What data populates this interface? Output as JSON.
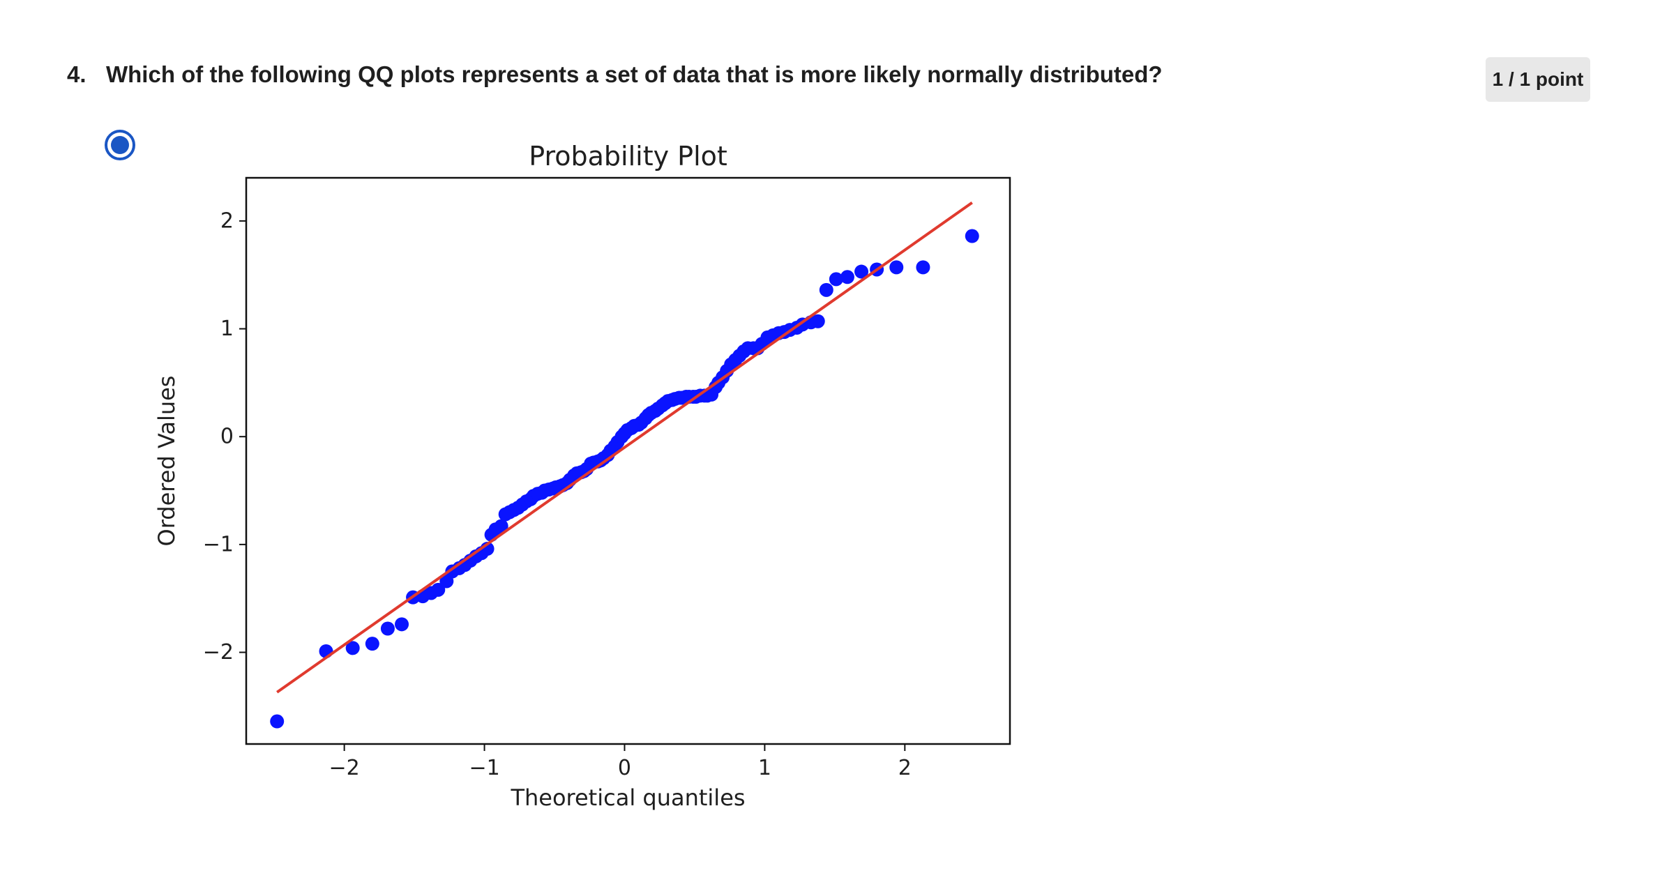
{
  "question": {
    "number": "4.",
    "text": "Which of the following QQ plots represents a set of data that is more likely normally distributed?",
    "score": "1 / 1 point"
  },
  "option": {
    "selected": true
  },
  "chart_data": {
    "type": "scatter",
    "title": "Probability Plot",
    "xlabel": "Theoretical quantiles",
    "ylabel": "Ordered Values",
    "xlim": [
      -2.7,
      2.75
    ],
    "ylim": [
      -2.85,
      2.4
    ],
    "xticks": [
      -2,
      -1,
      0,
      1,
      2
    ],
    "yticks": [
      -2,
      -1,
      0,
      1,
      2
    ],
    "xtick_labels": [
      "−2",
      "−1",
      "0",
      "1",
      "2"
    ],
    "ytick_labels": [
      "−2",
      "−1",
      "0",
      "1",
      "2"
    ],
    "point_color": "#0a14ff",
    "line_color": "#e03a2e",
    "fit_line": {
      "x": [
        -2.48,
        2.48
      ],
      "y": [
        -2.37,
        2.17
      ]
    },
    "points": [
      [
        -2.48,
        -2.64
      ],
      [
        -2.13,
        -1.99
      ],
      [
        -1.94,
        -1.96
      ],
      [
        -1.8,
        -1.92
      ],
      [
        -1.69,
        -1.78
      ],
      [
        -1.59,
        -1.74
      ],
      [
        -1.51,
        -1.49
      ],
      [
        -1.44,
        -1.48
      ],
      [
        -1.38,
        -1.45
      ],
      [
        -1.33,
        -1.42
      ],
      [
        -1.27,
        -1.34
      ],
      [
        -1.23,
        -1.25
      ],
      [
        -1.18,
        -1.22
      ],
      [
        -1.14,
        -1.19
      ],
      [
        -1.1,
        -1.15
      ],
      [
        -1.06,
        -1.11
      ],
      [
        -1.02,
        -1.08
      ],
      [
        -0.98,
        -1.04
      ],
      [
        -0.95,
        -0.91
      ],
      [
        -0.92,
        -0.86
      ],
      [
        -0.88,
        -0.83
      ],
      [
        -0.85,
        -0.72
      ],
      [
        -0.82,
        -0.7
      ],
      [
        -0.79,
        -0.68
      ],
      [
        -0.76,
        -0.66
      ],
      [
        -0.73,
        -0.63
      ],
      [
        -0.7,
        -0.6
      ],
      [
        -0.67,
        -0.58
      ],
      [
        -0.65,
        -0.55
      ],
      [
        -0.62,
        -0.53
      ],
      [
        -0.59,
        -0.52
      ],
      [
        -0.57,
        -0.5
      ],
      [
        -0.54,
        -0.49
      ],
      [
        -0.51,
        -0.48
      ],
      [
        -0.49,
        -0.47
      ],
      [
        -0.46,
        -0.46
      ],
      [
        -0.44,
        -0.45
      ],
      [
        -0.41,
        -0.43
      ],
      [
        -0.39,
        -0.4
      ],
      [
        -0.36,
        -0.36
      ],
      [
        -0.34,
        -0.34
      ],
      [
        -0.31,
        -0.33
      ],
      [
        -0.29,
        -0.32
      ],
      [
        -0.27,
        -0.3
      ],
      [
        -0.24,
        -0.25
      ],
      [
        -0.22,
        -0.24
      ],
      [
        -0.19,
        -0.23
      ],
      [
        -0.17,
        -0.22
      ],
      [
        -0.15,
        -0.2
      ],
      [
        -0.12,
        -0.17
      ],
      [
        -0.1,
        -0.13
      ],
      [
        -0.07,
        -0.09
      ],
      [
        -0.05,
        -0.05
      ],
      [
        -0.02,
        0.0
      ],
      [
        0.0,
        0.03
      ],
      [
        0.02,
        0.06
      ],
      [
        0.05,
        0.08
      ],
      [
        0.07,
        0.1
      ],
      [
        0.1,
        0.11
      ],
      [
        0.12,
        0.13
      ],
      [
        0.15,
        0.17
      ],
      [
        0.17,
        0.2
      ],
      [
        0.19,
        0.22
      ],
      [
        0.22,
        0.24
      ],
      [
        0.24,
        0.26
      ],
      [
        0.27,
        0.29
      ],
      [
        0.29,
        0.31
      ],
      [
        0.31,
        0.33
      ],
      [
        0.34,
        0.34
      ],
      [
        0.36,
        0.35
      ],
      [
        0.39,
        0.36
      ],
      [
        0.41,
        0.36
      ],
      [
        0.44,
        0.37
      ],
      [
        0.46,
        0.37
      ],
      [
        0.49,
        0.37
      ],
      [
        0.51,
        0.37
      ],
      [
        0.54,
        0.38
      ],
      [
        0.57,
        0.38
      ],
      [
        0.59,
        0.38
      ],
      [
        0.62,
        0.39
      ],
      [
        0.65,
        0.46
      ],
      [
        0.67,
        0.5
      ],
      [
        0.7,
        0.55
      ],
      [
        0.73,
        0.61
      ],
      [
        0.76,
        0.67
      ],
      [
        0.79,
        0.71
      ],
      [
        0.82,
        0.75
      ],
      [
        0.85,
        0.79
      ],
      [
        0.88,
        0.82
      ],
      [
        0.92,
        0.82
      ],
      [
        0.95,
        0.82
      ],
      [
        0.98,
        0.86
      ],
      [
        1.02,
        0.92
      ],
      [
        1.06,
        0.94
      ],
      [
        1.1,
        0.96
      ],
      [
        1.14,
        0.97
      ],
      [
        1.18,
        0.99
      ],
      [
        1.23,
        1.01
      ],
      [
        1.27,
        1.04
      ],
      [
        1.33,
        1.06
      ],
      [
        1.38,
        1.07
      ],
      [
        1.44,
        1.36
      ],
      [
        1.51,
        1.46
      ],
      [
        1.59,
        1.48
      ],
      [
        1.69,
        1.53
      ],
      [
        1.8,
        1.55
      ],
      [
        1.94,
        1.57
      ],
      [
        2.13,
        1.57
      ],
      [
        2.48,
        1.86
      ]
    ]
  }
}
